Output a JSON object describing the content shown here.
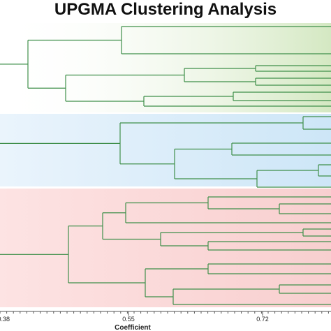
{
  "title": "UPGMA Clustering Analysis",
  "axis": {
    "title": "Coefficient",
    "tick_labels": [
      "0.38",
      "0.55",
      "0.72"
    ]
  },
  "colors": {
    "branch": "#3f8f4a",
    "cluster_green": "#d9ecc8",
    "cluster_blue": "#d3e9f8",
    "cluster_red": "#fad6d6",
    "axis": "#555555"
  }
}
